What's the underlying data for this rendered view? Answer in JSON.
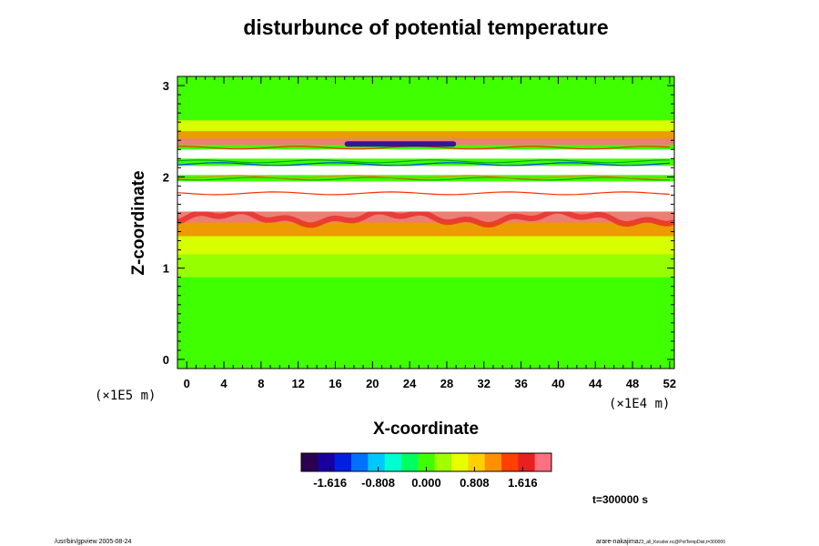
{
  "chart_data": {
    "type": "heatmap",
    "title": "disturbunce of potential temperature",
    "xlabel": "X-coordinate",
    "ylabel": "Z-coordinate",
    "x_ticks": [
      "0",
      "4",
      "8",
      "12",
      "16",
      "20",
      "24",
      "28",
      "32",
      "36",
      "40",
      "44",
      "48",
      "52"
    ],
    "y_ticks": [
      "0",
      "1",
      "2",
      "3"
    ],
    "xlim": [
      -1,
      52.5
    ],
    "ylim": [
      -0.1,
      3.1
    ],
    "x_unit": "(×1E4 m)",
    "y_unit": "(×1E5 m)",
    "colorbar": {
      "min": -2.1,
      "max": 2.1,
      "tick_labels": [
        "-1.616",
        "-0.808",
        "0.000",
        "0.808",
        "1.616"
      ],
      "tick_values": [
        -1.616,
        -0.808,
        0.0,
        0.808,
        1.616
      ],
      "colors": [
        "#2a0050",
        "#1800a0",
        "#0020e0",
        "#0070ff",
        "#00c8ff",
        "#00ffd0",
        "#00ff60",
        "#40ff00",
        "#a0ff00",
        "#e8ff00",
        "#ffd000",
        "#ff9000",
        "#ff4000",
        "#e82020",
        "#ff7080"
      ]
    },
    "fields": {
      "background_value": 0.0,
      "bands": [
        {
          "z_from": 0.0,
          "z_to": 0.9,
          "value": 0.05
        },
        {
          "z_from": 0.9,
          "z_to": 1.15,
          "value": 0.25
        },
        {
          "z_from": 1.15,
          "z_to": 1.35,
          "value": 0.55
        },
        {
          "z_from": 1.35,
          "z_to": 1.5,
          "value": 1.1
        },
        {
          "z_from": 1.5,
          "z_to": 1.62,
          "value": 1.9
        },
        {
          "z_from": 2.35,
          "z_to": 2.42,
          "value": 1.9
        },
        {
          "z_from": 2.42,
          "z_to": 2.5,
          "value": 1.2
        },
        {
          "z_from": 2.5,
          "z_to": 2.62,
          "value": 0.6
        },
        {
          "z_from": 2.62,
          "z_to": 3.1,
          "value": 0.1
        }
      ],
      "white_bands": [
        {
          "z_from": 1.62,
          "z_to": 1.95
        },
        {
          "z_from": 2.02,
          "z_to": 2.12
        },
        {
          "z_from": 2.2,
          "z_to": 2.3
        }
      ],
      "contour_lines_z": [
        1.82,
        1.98,
        2.0,
        2.14,
        2.17,
        2.32
      ],
      "blue_streak": {
        "x_from": 17,
        "x_to": 29,
        "z": 2.36,
        "value": -1.8
      }
    }
  },
  "footer": {
    "time_label": "t=300000 s",
    "left_note": "/usr/bin/gpview 2005-08-24",
    "right_note": "arare-nakajima",
    "right_sub": "Z3_all_Kessler.nc@PotTempDist,t=300000"
  }
}
